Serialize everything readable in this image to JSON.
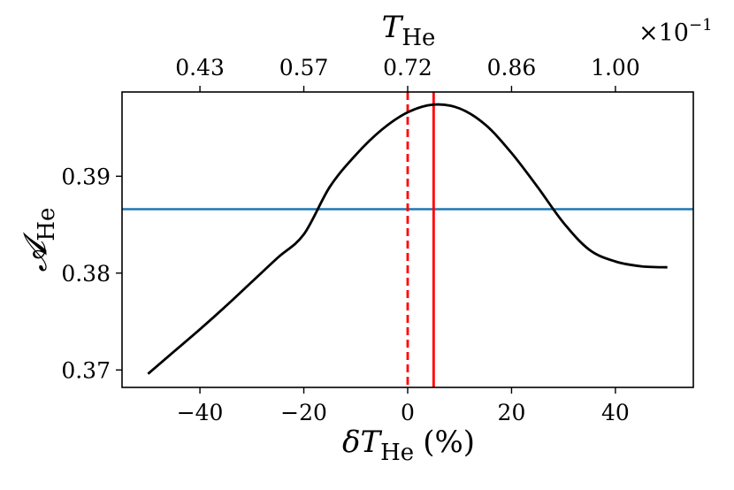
{
  "chart_data": {
    "type": "line",
    "title": "",
    "xlabel_main": "δT",
    "xlabel_sub": "He",
    "xlabel_unit": "(%)",
    "ylabel_main": "𝓐",
    "ylabel_sub": "He",
    "top_xlabel_main": "T",
    "top_xlabel_sub": "He",
    "top_multiplier": "×10",
    "top_multiplier_exp": "−1",
    "xlim": [
      -55,
      55
    ],
    "ylim": [
      0.3682,
      0.3987
    ],
    "x_ticks": [
      -40,
      -20,
      0,
      20,
      40
    ],
    "x_tick_labels": [
      "−40",
      "−20",
      "0",
      "20",
      "40"
    ],
    "y_ticks": [
      0.37,
      0.38,
      0.39
    ],
    "y_tick_labels": [
      "0.37",
      "0.38",
      "0.39"
    ],
    "top_ticks": [
      -40,
      -20,
      0,
      20,
      40
    ],
    "top_tick_labels": [
      "0.43",
      "0.57",
      "0.72",
      "0.86",
      "1.00"
    ],
    "series": [
      {
        "color": "#000000",
        "x": [
          -50,
          -45,
          -40,
          -35,
          -30,
          -25,
          -20,
          -15,
          -10,
          -5,
          0,
          5,
          10,
          15,
          20,
          25,
          30,
          35,
          40,
          45,
          50
        ],
        "y": [
          0.3696,
          0.3719,
          0.3742,
          0.3766,
          0.3791,
          0.3816,
          0.384,
          0.3889,
          0.3922,
          0.3948,
          0.3966,
          0.3974,
          0.397,
          0.3953,
          0.3924,
          0.3889,
          0.3852,
          0.3824,
          0.3812,
          0.3807,
          0.3806
        ]
      }
    ],
    "hlines": [
      {
        "y": 0.3866,
        "color": "#1f77b4",
        "style": "solid"
      }
    ],
    "vlines": [
      {
        "x": 0,
        "color": "#ff0000",
        "style": "dashed"
      },
      {
        "x": 5,
        "color": "#ff0000",
        "style": "solid"
      }
    ],
    "grid": false,
    "legend": "none"
  }
}
